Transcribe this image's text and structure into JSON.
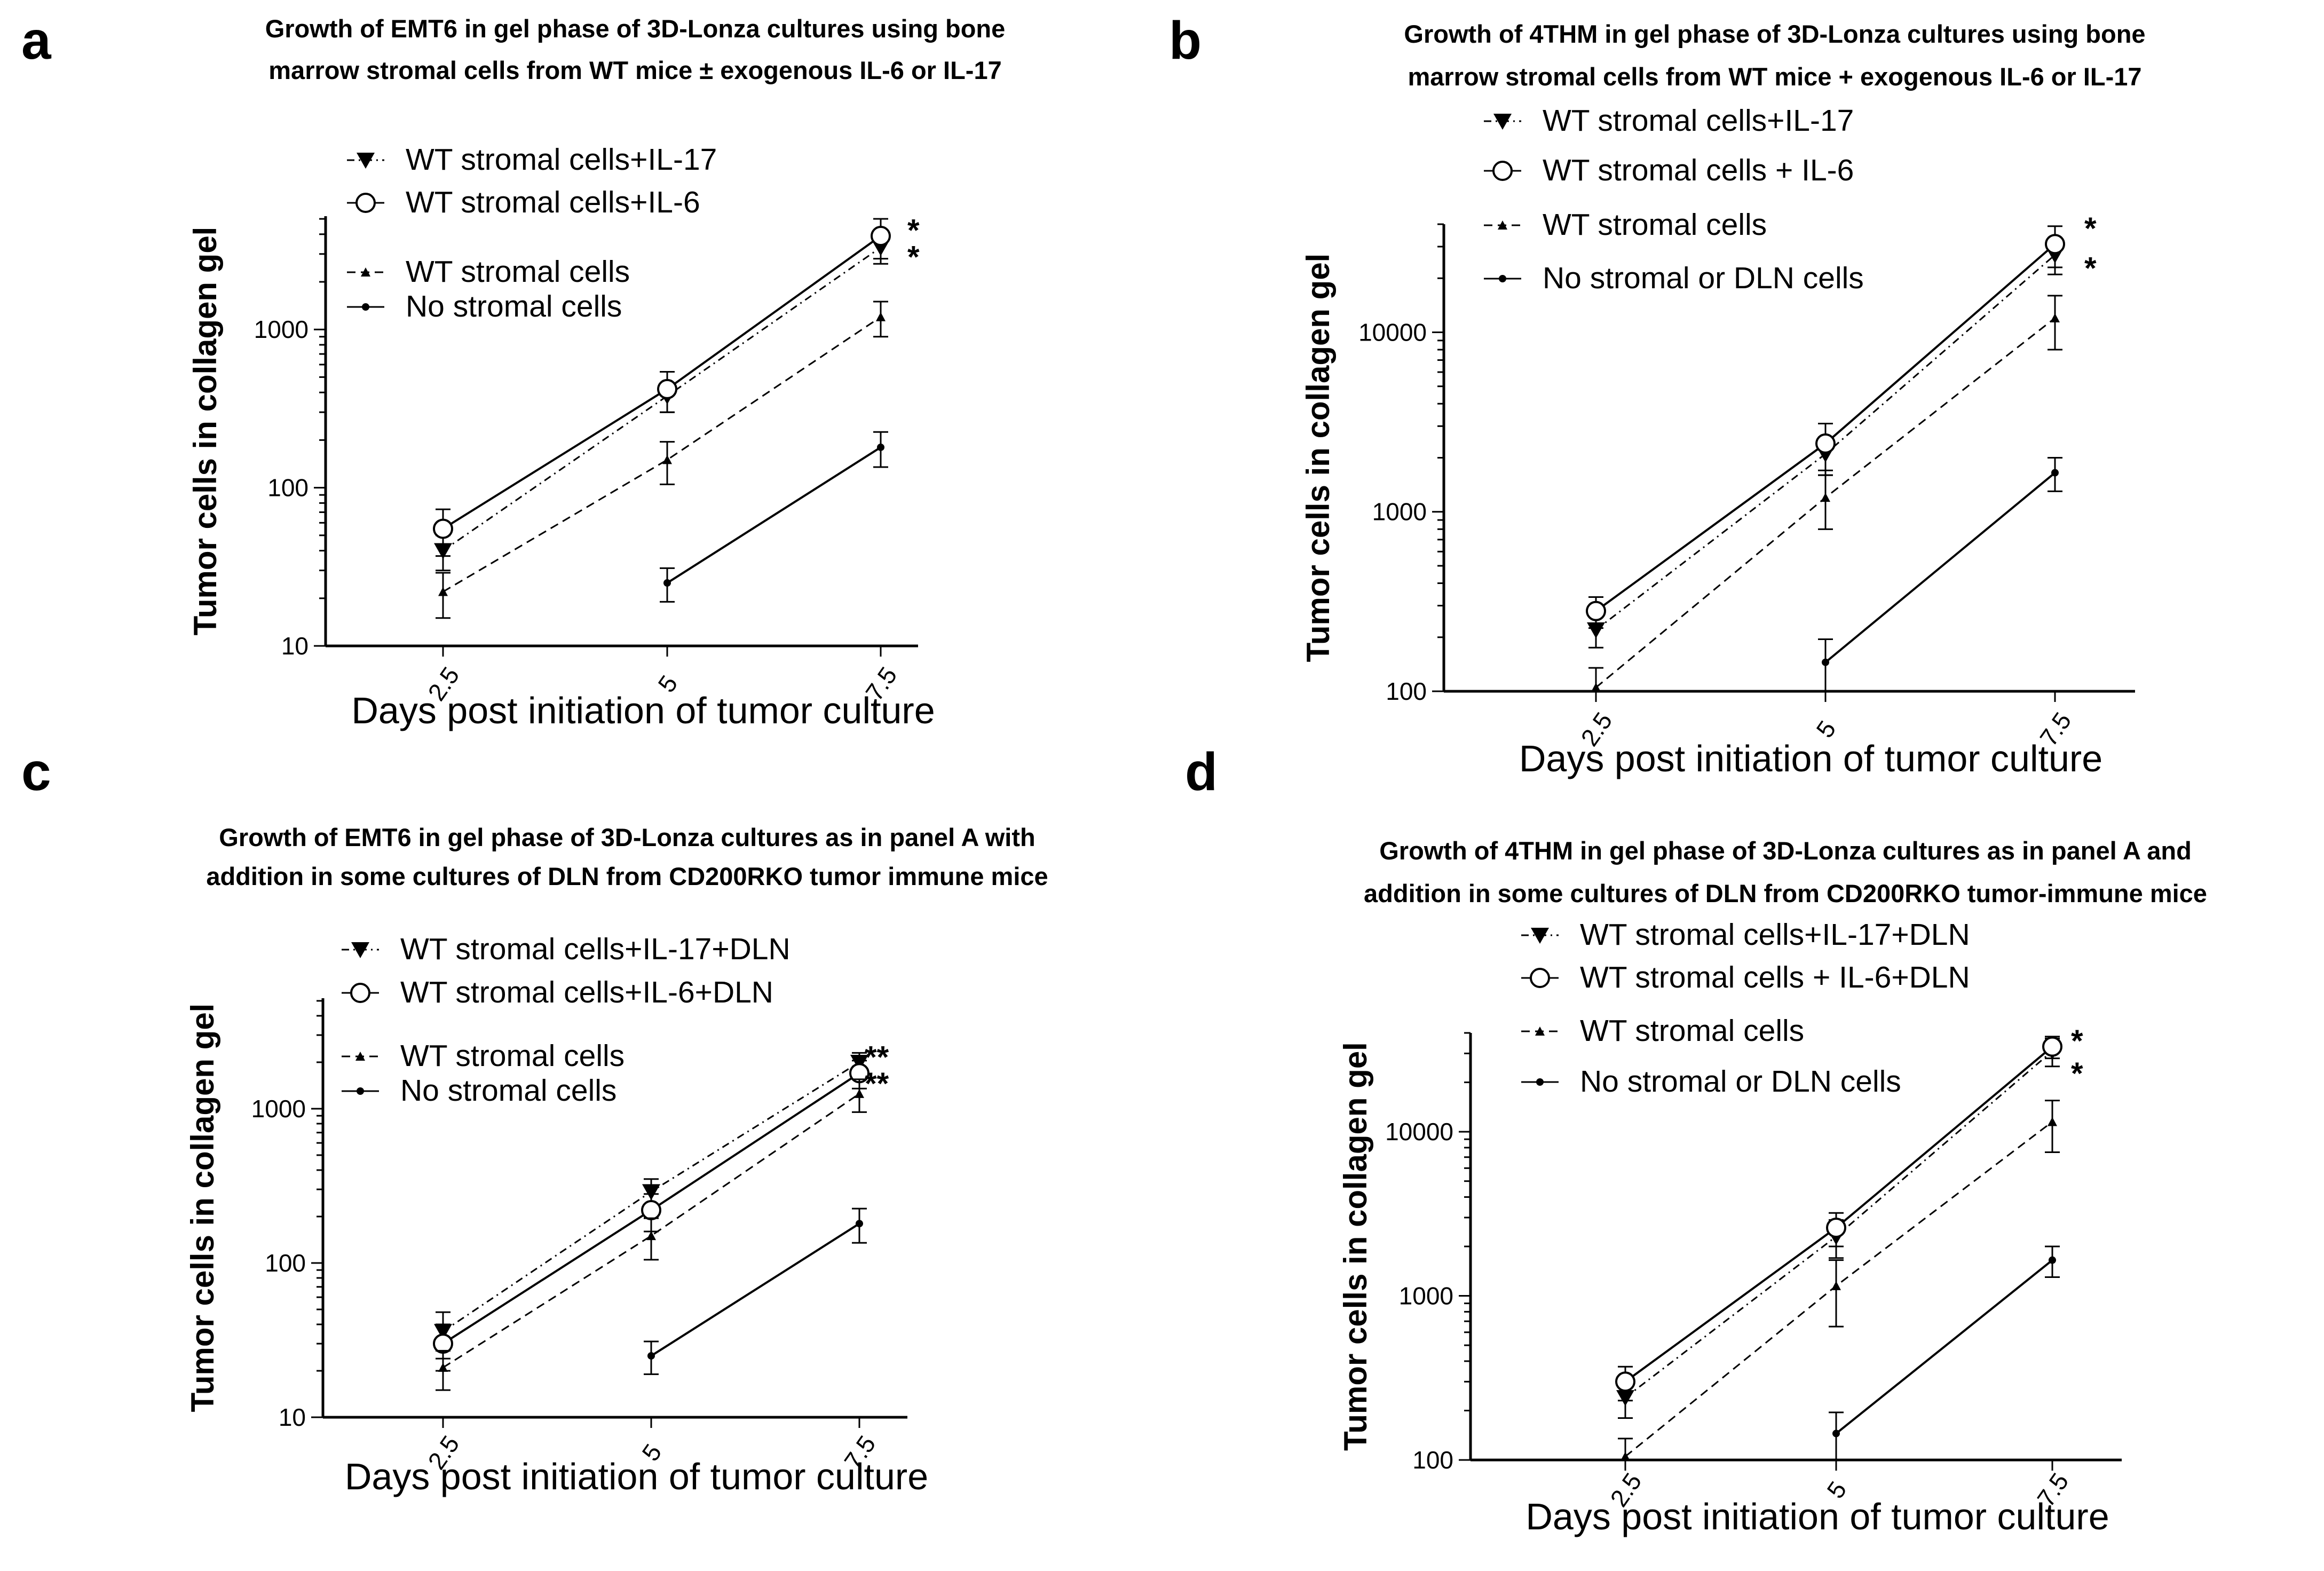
{
  "colors": {
    "ink": "#000000",
    "background": "#ffffff"
  },
  "chart_data": [
    {
      "type": "line",
      "panel_label": "a",
      "title_lines": [
        "Growth of  EMT6  in gel phase of 3D-Lonza cultures using bone",
        "marrow stromal cells from WT mice ± exogenous IL-6 or  IL-17"
      ],
      "xlabel": "Days post initiation of tumor culture",
      "ylabel": "Tumor cells in collagen gel",
      "x_ticks": [
        "2.5",
        "5",
        "7.5"
      ],
      "y_ticks": [
        "10",
        "100",
        "1000"
      ],
      "y_scale": "log",
      "ylim": [
        10,
        5200
      ],
      "grid": false,
      "legend_position": "top-left",
      "series": [
        {
          "name": "WT stromal cells+IL-17",
          "marker": "filled-triangle-down",
          "line": "dash-dot",
          "x": [
            2.5,
            5,
            7.5
          ],
          "y": [
            40,
            380,
            3300
          ],
          "err": [
            10,
            80,
            700
          ]
        },
        {
          "name": "WT stromal cells+IL-6",
          "marker": "open-circle",
          "line": "solid",
          "x": [
            2.5,
            5,
            7.5
          ],
          "y": [
            55,
            420,
            3900
          ],
          "err": [
            18,
            120,
            1100
          ]
        },
        {
          "name": "WT stromal cells",
          "marker": "small-triangle",
          "line": "dashed",
          "x": [
            2.5,
            5,
            7.5
          ],
          "y": [
            22,
            150,
            1200
          ],
          "err": [
            7,
            45,
            300
          ]
        },
        {
          "name": "No stromal cells",
          "marker": "small-dot",
          "line": "solid",
          "x": [
            5,
            7.5
          ],
          "y": [
            25,
            180
          ],
          "err": [
            6,
            45
          ]
        }
      ],
      "significance": [
        {
          "x": 7.5,
          "y": 4500,
          "label": "*"
        },
        {
          "x": 7.5,
          "y": 3050,
          "label": "*"
        }
      ]
    },
    {
      "type": "line",
      "panel_label": "b",
      "title_lines": [
        "Growth of 4THM  in gel phase of 3D-Lonza cultures using bone",
        "marrow stromal cells from WT mice + exogenous IL-6 or IL-17"
      ],
      "xlabel": "Days post initiation of tumor culture",
      "ylabel": "Tumor cells in collagen gel",
      "x_ticks": [
        "2.5",
        "5",
        "7.5"
      ],
      "y_ticks": [
        "100",
        "1000",
        "10000"
      ],
      "y_scale": "log",
      "ylim": [
        100,
        40000
      ],
      "grid": false,
      "legend_position": "top-left",
      "series": [
        {
          "name": "WT stromal cells+IL-17",
          "marker": "filled-triangle-down",
          "line": "dash-dot",
          "x": [
            2.5,
            5,
            7.5
          ],
          "y": [
            220,
            2100,
            27000
          ],
          "err": [
            45,
            500,
            6000
          ]
        },
        {
          "name": "WT stromal cells + IL-6",
          "marker": "open-circle",
          "line": "solid",
          "x": [
            2.5,
            5,
            7.5
          ],
          "y": [
            280,
            2400,
            31000
          ],
          "err": [
            55,
            700,
            8000
          ]
        },
        {
          "name": "WT stromal cells",
          "marker": "small-triangle",
          "line": "dashed",
          "x": [
            2.5,
            5,
            7.5
          ],
          "y": [
            105,
            1200,
            12000
          ],
          "err": [
            30,
            400,
            4000
          ]
        },
        {
          "name": "No stromal or DLN cells",
          "marker": "small-dot",
          "line": "solid",
          "x": [
            5,
            7.5
          ],
          "y": [
            145,
            1650
          ],
          "err": [
            50,
            350
          ]
        }
      ],
      "significance": [
        {
          "x": 7.5,
          "y": 40000,
          "label": "*"
        },
        {
          "x": 7.5,
          "y": 24000,
          "label": "*"
        }
      ]
    },
    {
      "type": "line",
      "panel_label": "c",
      "title_lines": [
        "Growth of  EMT6  in gel phase of 3D-Lonza cultures as in panel A with",
        "addition in some cultures of  DLN from CD200RKO tumor immune mice"
      ],
      "xlabel": "Days post initiation of tumor culture",
      "ylabel": "Tumor cells in collagen gel",
      "x_ticks": [
        "2.5",
        "5",
        "7.5"
      ],
      "y_ticks": [
        "10",
        "100",
        "1000"
      ],
      "y_scale": "log",
      "ylim": [
        10,
        5200
      ],
      "grid": false,
      "legend_position": "top-left",
      "series": [
        {
          "name": "WT stromal cells+IL-17+DLN",
          "marker": "filled-triangle-down",
          "line": "dash-dot",
          "x": [
            2.5,
            5,
            7.5
          ],
          "y": [
            36,
            290,
            2000
          ],
          "err": [
            12,
            60,
            300
          ]
        },
        {
          "name": "WT stromal cells+IL-6+DLN",
          "marker": "open-circle",
          "line": "solid",
          "x": [
            2.5,
            5,
            7.5
          ],
          "y": [
            30,
            220,
            1700
          ],
          "err": [
            10,
            60,
            350
          ]
        },
        {
          "name": "WT stromal cells",
          "marker": "small-triangle",
          "line": "dashed",
          "x": [
            2.5,
            5,
            7.5
          ],
          "y": [
            21,
            150,
            1250
          ],
          "err": [
            6,
            45,
            300
          ]
        },
        {
          "name": "No stromal cells",
          "marker": "small-dot",
          "line": "solid",
          "x": [
            5,
            7.5
          ],
          "y": [
            25,
            180
          ],
          "err": [
            6,
            45
          ]
        }
      ],
      "significance": [
        {
          "x": 7.5,
          "y": 2300,
          "label": "**"
        },
        {
          "x": 7.5,
          "y": 1550,
          "label": "**"
        }
      ]
    },
    {
      "type": "line",
      "panel_label": "d",
      "title_lines": [
        "Growth of 4THM  in gel phase of 3D-Lonza cultures as in panel A and",
        "addition in some cultures of DLN from CD200RKO tumor-immune mice"
      ],
      "xlabel": "Days post initiation of tumor culture",
      "ylabel": "Tumor cells in collagen gel",
      "x_ticks": [
        "2.5",
        "5",
        "7.5"
      ],
      "y_ticks": [
        "100",
        "1000",
        "10000"
      ],
      "y_scale": "log",
      "ylim": [
        100,
        40000
      ],
      "grid": false,
      "legend_position": "top-left",
      "series": [
        {
          "name": "WT stromal cells+IL-17+DLN",
          "marker": "filled-triangle-down",
          "line": "dash-dot",
          "x": [
            2.5,
            5,
            7.5
          ],
          "y": [
            240,
            2300,
            31000
          ],
          "err": [
            60,
            600,
            6000
          ]
        },
        {
          "name": "WT stromal cells + IL-6+DLN",
          "marker": "open-circle",
          "line": "solid",
          "x": [
            2.5,
            5,
            7.5
          ],
          "y": [
            300,
            2600,
            33000
          ],
          "err": [
            70,
            600,
            5000
          ]
        },
        {
          "name": "WT stromal cells",
          "marker": "small-triangle",
          "line": "dashed",
          "x": [
            2.5,
            5,
            7.5
          ],
          "y": [
            105,
            1150,
            11500
          ],
          "err": [
            30,
            500,
            4000
          ]
        },
        {
          "name": "No stromal or DLN cells",
          "marker": "small-dot",
          "line": "solid",
          "x": [
            5,
            7.5
          ],
          "y": [
            145,
            1650
          ],
          "err": [
            50,
            350
          ]
        }
      ],
      "significance": [
        {
          "x": 7.5,
          "y": 38000,
          "label": "*"
        },
        {
          "x": 7.5,
          "y": 24000,
          "label": "*"
        }
      ]
    }
  ]
}
